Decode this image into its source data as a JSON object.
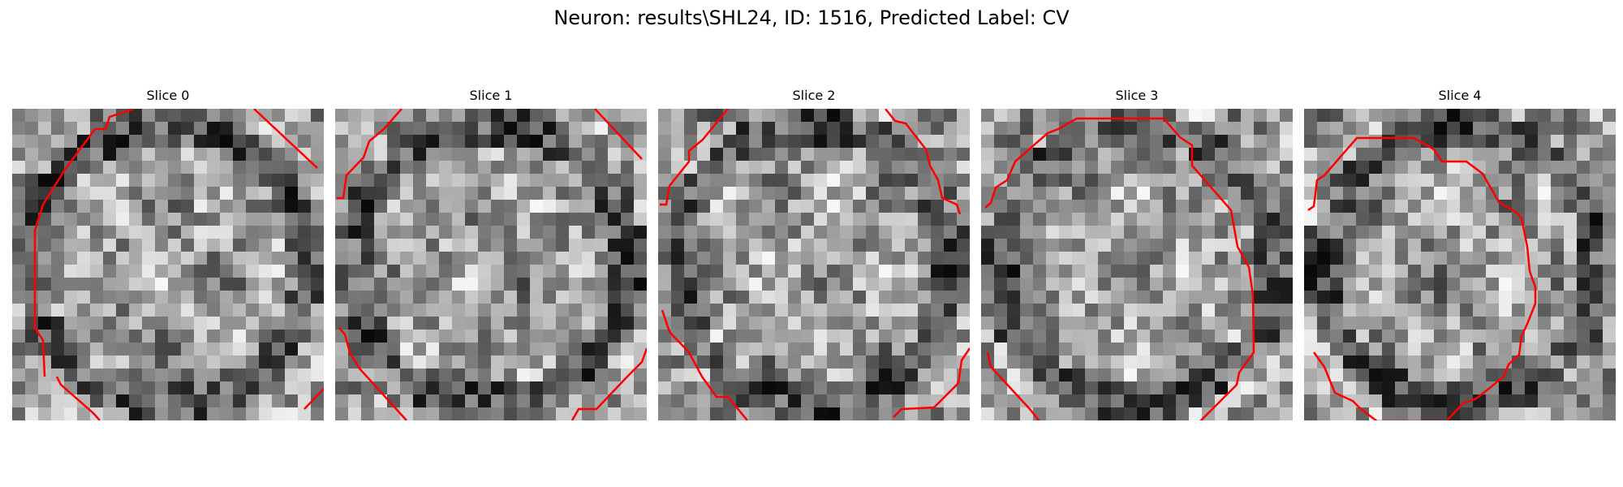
{
  "figure": {
    "suptitle": "Neuron: results\\SHL24, ID: 1516, Predicted Label: CV",
    "contour_color": "#ff0000",
    "colormap": "gray"
  },
  "slices": [
    {
      "title": "Slice 0"
    },
    {
      "title": "Slice 1"
    },
    {
      "title": "Slice 2"
    },
    {
      "title": "Slice 3"
    },
    {
      "title": "Slice 4"
    }
  ]
}
